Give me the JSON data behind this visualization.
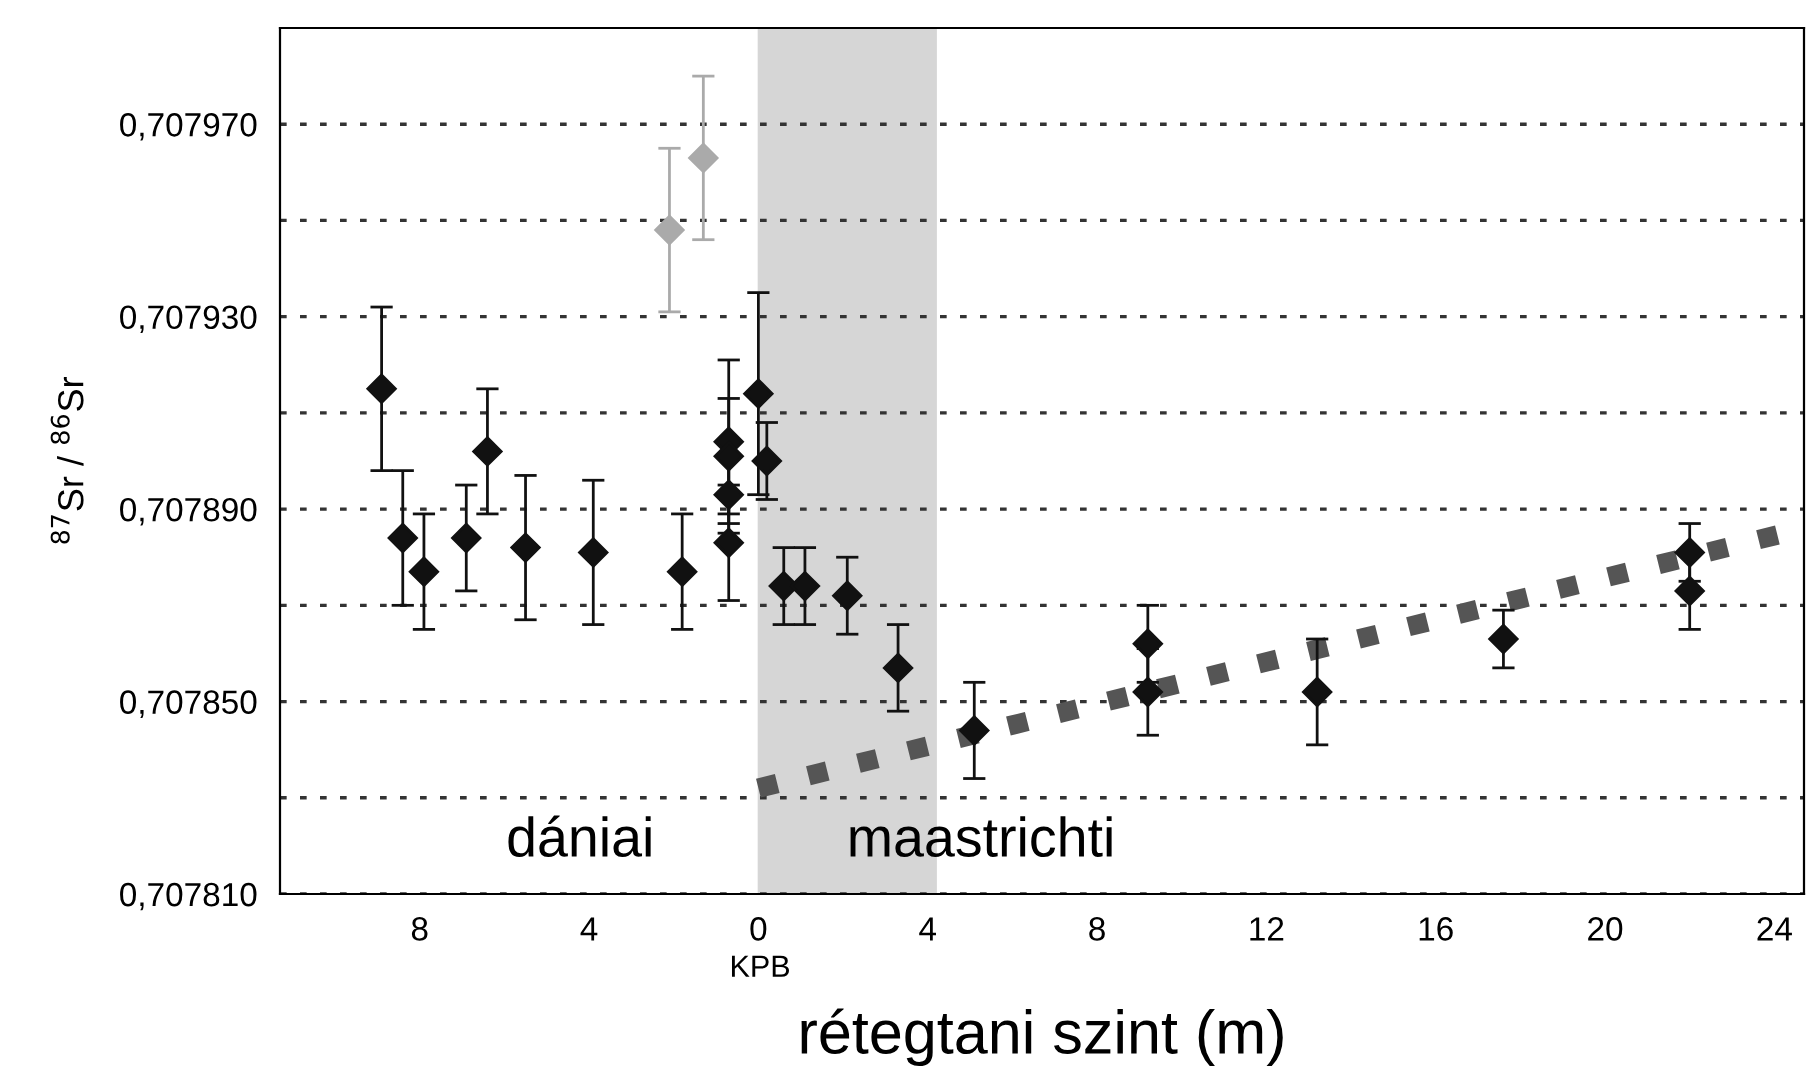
{
  "chart_data": {
    "type": "scatter",
    "xlabel": "rétegtani szint (m)",
    "ylabel": "$^{87}$Sr / $^{86}$Sr",
    "marker": "diamond",
    "grid": "y",
    "xlim": [
      -11.3,
      24.7
    ],
    "ylim": [
      0.70781,
      0.70799
    ],
    "xticks": [
      {
        "value": -8,
        "label": "8"
      },
      {
        "value": -4,
        "label": "4"
      },
      0,
      4,
      8,
      12,
      16,
      20,
      24
    ],
    "yticks": [
      {
        "value": 0.70781,
        "label": "0,707810"
      },
      {
        "value": 0.70783,
        "label": null
      },
      {
        "value": 0.70785,
        "label": "0,707850"
      },
      {
        "value": 0.70787,
        "label": null
      },
      {
        "value": 0.70789,
        "label": "0,707890"
      },
      {
        "value": 0.70791,
        "label": null
      },
      {
        "value": 0.70793,
        "label": "0,707930"
      },
      {
        "value": 0.70795,
        "label": null
      },
      {
        "value": 0.70797,
        "label": "0,707970"
      }
    ],
    "series": [
      {
        "color": "#111111",
        "x": [
          -8.9,
          -8.4,
          -7.9,
          -6.9,
          -6.4,
          -5.5,
          -3.9,
          -1.8,
          -0.7,
          -0.7,
          -0.7,
          -0.7,
          0,
          0.2,
          0.6,
          1.1,
          2.1,
          3.3,
          5.1,
          9.2,
          9.2,
          13.2,
          17.6,
          22.0,
          22.0
        ],
        "values": [
          0.707915,
          0.707884,
          0.707877,
          0.707884,
          0.707902,
          0.707882,
          0.707881,
          0.707877,
          0.707904,
          0.707901,
          0.707893,
          0.707883,
          0.707914,
          0.7079,
          0.707874,
          0.707874,
          0.707872,
          0.707857,
          0.707844,
          0.707862,
          0.707852,
          0.707852,
          0.707863,
          0.707881,
          0.707873
        ],
        "errors": [
          1.7e-05,
          1.4e-05,
          1.2e-05,
          1.1e-05,
          1.3e-05,
          1.5e-05,
          1.5e-05,
          1.2e-05,
          1.7e-05,
          1.2e-05,
          8e-06,
          1.2e-05,
          2.1e-05,
          8e-06,
          8e-06,
          8e-06,
          8e-06,
          9e-06,
          1e-05,
          8e-06,
          9e-06,
          1.1e-05,
          6e-06,
          6e-06,
          8e-06
        ]
      },
      {
        "color": "#aaaaaa",
        "x": [
          -2.1,
          -1.3
        ],
        "values": [
          0.707948,
          0.707963
        ],
        "errors": [
          1.7e-05,
          1.7e-05
        ]
      },
      {
        "type": "line",
        "color": "#555555",
        "line_style": "dotted",
        "x": [
          0,
          24.7
        ],
        "values": [
          0.707832,
          0.707886
        ],
        "marker": "none"
      }
    ],
    "bands": [
      {
        "axis": "x",
        "from": 0,
        "to": 4.2,
        "color": "#d6d6d6"
      }
    ],
    "annotations": [
      "dániai",
      "maastrichti",
      "KPB"
    ]
  }
}
